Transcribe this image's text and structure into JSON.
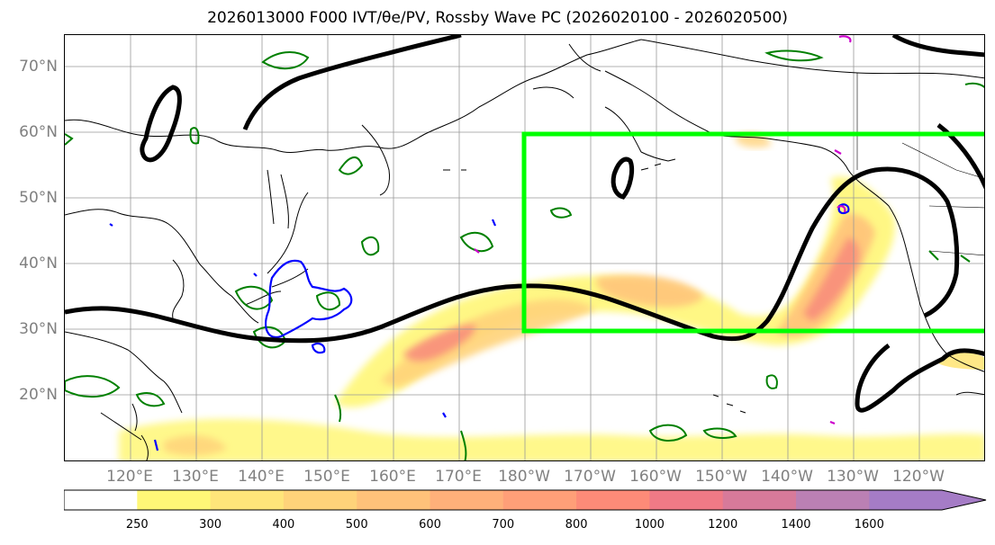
{
  "title": "2026013000 F000 IVT/θe/PV, Rossby Wave PC (2026020100 - 2026020500)",
  "lat_labels": [
    "70°N",
    "60°N",
    "50°N",
    "40°N",
    "30°N",
    "20°N"
  ],
  "lon_labels": [
    "120°E",
    "130°E",
    "140°E",
    "150°E",
    "160°E",
    "170°E",
    "180°W",
    "170°W",
    "160°W",
    "150°W",
    "140°W",
    "130°W",
    "120°W"
  ],
  "colorbar": {
    "levels": [
      "250",
      "300",
      "400",
      "500",
      "600",
      "700",
      "800",
      "1000",
      "1200",
      "1400",
      "1600"
    ],
    "colors": [
      "#ffffff",
      "#fff777",
      "#ffe57a",
      "#ffd37a",
      "#ffc27a",
      "#ffb07a",
      "#ff9f78",
      "#fd8b78",
      "#f07a86",
      "#d77a9a",
      "#bb80b4",
      "#a57cc6"
    ]
  },
  "overlay_colors": {
    "ivt_shade": "#fdd86d",
    "theta_e_contour": "#008000",
    "pv_contour": "#0000ff",
    "pv_contour_alt": "#cc00cc",
    "rossby_pc_contour": "#000000",
    "analysis_box": "#00ff00",
    "coastline": "#000000"
  }
}
